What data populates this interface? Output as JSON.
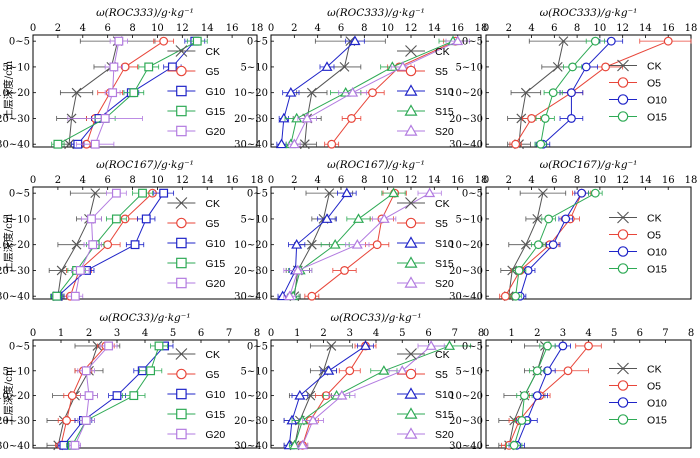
{
  "figure": {
    "row_labels": [
      "土层深度/cm",
      "土层深度/cm",
      "土层深度/cm"
    ]
  },
  "colors": {
    "CK": "#555555",
    "G5": "#e8463a",
    "G10": "#1f24c8",
    "G15": "#2eaa55",
    "G20": "#b27be0",
    "S5": "#e8463a",
    "S10": "#1f24c8",
    "S15": "#2eaa55",
    "S20": "#b27be0",
    "O5": "#e8463a",
    "O10": "#1f24c8",
    "O15": "#2eaa55"
  },
  "markers": {
    "CK": "x",
    "G5": "circle",
    "G10": "square",
    "G15": "square",
    "G20": "square",
    "S5": "circle",
    "S10": "triangle",
    "S15": "triangle",
    "S20": "triangle",
    "O5": "circle",
    "O10": "circle",
    "O15": "circle"
  },
  "chart_data": [
    {
      "type": "line",
      "title": "ω(ROC333)/g·kg⁻¹",
      "xlabel": "ω(ROC333)/g·kg⁻¹",
      "ylabel": "土层深度/cm",
      "xlim": [
        0,
        18
      ],
      "xticks": [
        0,
        2,
        4,
        6,
        8,
        10,
        12,
        14,
        16,
        18
      ],
      "categories": [
        "0~5",
        "5~10",
        "10~20",
        "20~30",
        "30~40"
      ],
      "legend_position": "right",
      "series": [
        {
          "name": "CK",
          "values": [
            6.8,
            6.3,
            3.5,
            3.1,
            2.9
          ],
          "errors": [
            3.0,
            1.4,
            1.3,
            1.2,
            1.0
          ]
        },
        {
          "name": "G5",
          "values": [
            10.5,
            7.4,
            6.2,
            5.0,
            4.3
          ],
          "errors": [
            0.8,
            1.0,
            1.0,
            0.7,
            0.5
          ]
        },
        {
          "name": "G10",
          "values": [
            13.0,
            11.2,
            7.9,
            5.3,
            3.6
          ],
          "errors": [
            0.8,
            0.7,
            0.6,
            0.6,
            0.5
          ]
        },
        {
          "name": "G15",
          "values": [
            13.2,
            9.3,
            8.1,
            5.8,
            2.0
          ],
          "errors": [
            0.8,
            0.8,
            0.8,
            0.8,
            0.5
          ]
        },
        {
          "name": "G20",
          "values": [
            6.9,
            6.5,
            6.4,
            5.8,
            5.0
          ],
          "errors": [
            0.7,
            0.7,
            0.6,
            3.0,
            1.5
          ]
        }
      ]
    },
    {
      "type": "line",
      "title": "ω(ROC333)/g·kg⁻¹",
      "xlabel": "ω(ROC333)/g·kg⁻¹",
      "ylabel": "",
      "xlim": [
        0,
        18
      ],
      "xticks": [
        0,
        2,
        4,
        6,
        8,
        10,
        12,
        14,
        16,
        18
      ],
      "categories": [
        "0~5",
        "5~10",
        "10~20",
        "20~30",
        "30~40"
      ],
      "legend_position": "right",
      "series": [
        {
          "name": "CK",
          "values": [
            6.8,
            6.3,
            3.5,
            3.1,
            2.9
          ],
          "errors": [
            3.0,
            1.4,
            1.3,
            1.2,
            1.0
          ]
        },
        {
          "name": "S5",
          "values": [
            15.8,
            11.0,
            8.7,
            6.9,
            5.2
          ],
          "errors": [
            1.0,
            1.0,
            1.0,
            0.8,
            0.6
          ]
        },
        {
          "name": "S10",
          "values": [
            7.2,
            4.8,
            1.7,
            1.1,
            0.9
          ],
          "errors": [
            0.8,
            0.6,
            0.7,
            0.4,
            0.4
          ]
        },
        {
          "name": "S15",
          "values": [
            15.6,
            10.4,
            6.4,
            2.2,
            1.7
          ],
          "errors": [
            1.2,
            1.0,
            1.3,
            1.0,
            0.4
          ]
        },
        {
          "name": "S20",
          "values": [
            16.0,
            11.3,
            7.0,
            3.1,
            2.0
          ],
          "errors": [
            1.0,
            1.0,
            1.2,
            0.8,
            0.5
          ]
        }
      ]
    },
    {
      "type": "line",
      "title": "ω(ROC333)/g·kg⁻¹",
      "xlabel": "ω(ROC333)/g·kg⁻¹",
      "ylabel": "",
      "xlim": [
        0,
        18
      ],
      "xticks": [
        0,
        2,
        4,
        6,
        8,
        10,
        12,
        14,
        16,
        18
      ],
      "categories": [
        "0~5",
        "5~10",
        "10~20",
        "20~30",
        "30~40"
      ],
      "legend_position": "right",
      "series": [
        {
          "name": "CK",
          "values": [
            6.8,
            6.3,
            3.5,
            3.1,
            2.9
          ],
          "errors": [
            3.0,
            1.4,
            1.3,
            1.2,
            1.0
          ]
        },
        {
          "name": "O5",
          "values": [
            16.0,
            10.5,
            7.5,
            4.0,
            2.6
          ],
          "errors": [
            2.5,
            1.5,
            1.0,
            0.8,
            0.5
          ]
        },
        {
          "name": "O10",
          "values": [
            11.0,
            8.8,
            7.5,
            7.5,
            5.0
          ],
          "errors": [
            1.0,
            1.0,
            1.0,
            1.0,
            0.6
          ]
        },
        {
          "name": "O15",
          "values": [
            9.6,
            7.6,
            5.9,
            5.2,
            4.8
          ],
          "errors": [
            0.8,
            0.8,
            0.8,
            0.8,
            0.5
          ]
        }
      ]
    },
    {
      "type": "line",
      "title": "ω(ROC167)/g·kg⁻¹",
      "xlabel": "ω(ROC167)/g·kg⁻¹",
      "ylabel": "土层深度/cm",
      "xlim": [
        0,
        18
      ],
      "xticks": [
        0,
        2,
        4,
        6,
        8,
        10,
        12,
        14,
        16,
        18
      ],
      "categories": [
        "0~5",
        "5~10",
        "10~20",
        "20~30",
        "30~40"
      ],
      "legend_position": "right",
      "series": [
        {
          "name": "CK",
          "values": [
            5.0,
            4.5,
            3.5,
            2.3,
            2.0
          ],
          "errors": [
            2.0,
            1.0,
            1.5,
            1.0,
            0.5
          ]
        },
        {
          "name": "G5",
          "values": [
            9.6,
            7.4,
            6.0,
            3.7,
            3.0
          ],
          "errors": [
            1.0,
            1.0,
            1.0,
            1.0,
            0.5
          ]
        },
        {
          "name": "G10",
          "values": [
            10.5,
            9.1,
            8.2,
            4.3,
            2.0
          ],
          "errors": [
            0.8,
            0.7,
            0.7,
            0.6,
            0.5
          ]
        },
        {
          "name": "G15",
          "values": [
            8.8,
            6.7,
            5.0,
            3.5,
            1.9
          ],
          "errors": [
            0.8,
            0.8,
            0.7,
            0.7,
            0.5
          ]
        },
        {
          "name": "G20",
          "values": [
            6.7,
            4.7,
            4.8,
            3.8,
            3.4
          ],
          "errors": [
            0.8,
            0.8,
            0.7,
            0.7,
            0.6
          ]
        }
      ]
    },
    {
      "type": "line",
      "title": "ω(ROC167)/g·kg⁻¹",
      "xlabel": "ω(ROC167)/g·kg⁻¹",
      "ylabel": "",
      "xlim": [
        0,
        18
      ],
      "xticks": [
        0,
        2,
        4,
        6,
        8,
        10,
        12,
        14,
        16,
        18
      ],
      "categories": [
        "0~5",
        "5~10",
        "10~20",
        "20~30",
        "30~40"
      ],
      "legend_position": "right",
      "series": [
        {
          "name": "CK",
          "values": [
            5.0,
            4.5,
            3.5,
            2.3,
            2.0
          ],
          "errors": [
            2.0,
            1.0,
            1.5,
            1.0,
            0.5
          ]
        },
        {
          "name": "S5",
          "values": [
            10.6,
            9.5,
            9.1,
            6.3,
            3.5
          ],
          "errors": [
            1.0,
            1.0,
            1.0,
            1.0,
            0.6
          ]
        },
        {
          "name": "S10",
          "values": [
            6.5,
            4.8,
            2.2,
            2.1,
            1.0
          ],
          "errors": [
            0.8,
            0.8,
            0.7,
            0.5,
            0.4
          ]
        },
        {
          "name": "S15",
          "values": [
            10.5,
            7.5,
            5.5,
            2.5,
            1.9
          ],
          "errors": [
            1.0,
            1.0,
            1.2,
            1.0,
            0.5
          ]
        },
        {
          "name": "S20",
          "values": [
            13.6,
            9.7,
            7.4,
            2.3,
            1.6
          ],
          "errors": [
            1.0,
            1.0,
            1.0,
            1.2,
            0.5
          ]
        }
      ]
    },
    {
      "type": "line",
      "title": "ω(ROC167)/g·kg⁻¹",
      "xlabel": "ω(ROC167)/g·kg⁻¹",
      "ylabel": "",
      "xlim": [
        0,
        18
      ],
      "xticks": [
        0,
        2,
        4,
        6,
        8,
        10,
        12,
        14,
        16,
        18
      ],
      "categories": [
        "0~5",
        "5~10",
        "10~20",
        "20~30",
        "30~40"
      ],
      "legend_position": "right",
      "series": [
        {
          "name": "CK",
          "values": [
            5.0,
            4.5,
            3.5,
            2.3,
            2.0
          ],
          "errors": [
            2.0,
            1.0,
            1.5,
            1.0,
            0.5
          ]
        },
        {
          "name": "O5",
          "values": [
            8.4,
            7.4,
            5.6,
            3.0,
            1.7
          ],
          "errors": [
            0.8,
            0.8,
            0.8,
            0.8,
            0.5
          ]
        },
        {
          "name": "O10",
          "values": [
            8.4,
            7.0,
            5.9,
            3.7,
            3.0
          ],
          "errors": [
            0.6,
            0.6,
            0.6,
            0.6,
            0.5
          ]
        },
        {
          "name": "O15",
          "values": [
            9.6,
            5.5,
            4.6,
            2.9,
            2.6
          ],
          "errors": [
            0.6,
            0.6,
            0.6,
            0.6,
            0.5
          ]
        }
      ]
    },
    {
      "type": "line",
      "title": "ω(ROC33)/g·kg⁻¹",
      "xlabel": "ω(ROC33)/g·kg⁻¹",
      "ylabel": "土层深度/cm",
      "xlim": [
        0,
        8
      ],
      "xticks": [
        0,
        1,
        2,
        3,
        4,
        5,
        6,
        7,
        8
      ],
      "categories": [
        "0~5",
        "5~10",
        "10~20",
        "20~30",
        "30~40"
      ],
      "legend_position": "right",
      "series": [
        {
          "name": "CK",
          "values": [
            2.3,
            2.0,
            1.5,
            1.1,
            0.9
          ],
          "errors": [
            0.8,
            0.5,
            0.8,
            0.6,
            0.4
          ]
        },
        {
          "name": "G5",
          "values": [
            2.6,
            1.8,
            1.4,
            1.2,
            1.0
          ],
          "errors": [
            0.3,
            0.3,
            0.3,
            0.3,
            0.2
          ]
        },
        {
          "name": "G10",
          "values": [
            4.7,
            3.9,
            3.0,
            1.8,
            1.1
          ],
          "errors": [
            0.3,
            0.3,
            0.3,
            0.3,
            0.2
          ]
        },
        {
          "name": "G15",
          "values": [
            4.5,
            4.2,
            3.6,
            1.9,
            1.4
          ],
          "errors": [
            0.3,
            0.4,
            0.4,
            0.3,
            0.2
          ]
        },
        {
          "name": "G20",
          "values": [
            2.7,
            1.9,
            2.0,
            1.9,
            1.5
          ],
          "errors": [
            0.3,
            0.3,
            0.3,
            0.3,
            0.2
          ]
        }
      ]
    },
    {
      "type": "line",
      "title": "ω(ROC33)/g·kg⁻¹",
      "xlabel": "ω(ROC33)/g·kg⁻¹",
      "ylabel": "",
      "xlim": [
        0,
        8
      ],
      "xticks": [
        0,
        1,
        2,
        3,
        4,
        5,
        6,
        7,
        8
      ],
      "categories": [
        "0~5",
        "5~10",
        "10~20",
        "20~30",
        "30~40"
      ],
      "legend_position": "right",
      "series": [
        {
          "name": "CK",
          "values": [
            2.3,
            2.0,
            1.5,
            1.1,
            0.9
          ],
          "errors": [
            0.8,
            0.5,
            0.8,
            0.6,
            0.4
          ]
        },
        {
          "name": "S5",
          "values": [
            3.6,
            3.0,
            2.1,
            1.5,
            1.2
          ],
          "errors": [
            0.4,
            0.4,
            0.4,
            0.3,
            0.2
          ]
        },
        {
          "name": "S10",
          "values": [
            3.6,
            2.2,
            1.1,
            0.8,
            0.7
          ],
          "errors": [
            0.3,
            0.3,
            0.3,
            0.3,
            0.2
          ]
        },
        {
          "name": "S15",
          "values": [
            6.8,
            4.3,
            2.5,
            1.2,
            0.9
          ],
          "errors": [
            0.8,
            0.5,
            0.5,
            0.4,
            0.2
          ]
        },
        {
          "name": "S20",
          "values": [
            6.1,
            5.0,
            2.7,
            1.6,
            1.2
          ],
          "errors": [
            0.5,
            0.5,
            0.5,
            0.4,
            0.2
          ]
        }
      ]
    },
    {
      "type": "line",
      "title": "",
      "xlabel": "",
      "ylabel": "",
      "xlim": [
        0,
        8
      ],
      "xticks": [
        0,
        1,
        2,
        3,
        4,
        5,
        6,
        7,
        8
      ],
      "categories": [
        "0~5",
        "5~10",
        "10~20",
        "20~30",
        "30~40"
      ],
      "legend_position": "right",
      "series": [
        {
          "name": "CK",
          "values": [
            2.3,
            2.0,
            1.5,
            1.1,
            0.9
          ],
          "errors": [
            0.8,
            0.5,
            0.8,
            0.6,
            0.4
          ]
        },
        {
          "name": "O5",
          "values": [
            4.0,
            3.2,
            2.1,
            1.3,
            0.9
          ],
          "errors": [
            0.5,
            0.8,
            0.4,
            0.4,
            0.3
          ]
        },
        {
          "name": "O10",
          "values": [
            3.0,
            2.4,
            2.0,
            1.6,
            1.2
          ],
          "errors": [
            0.3,
            0.3,
            0.4,
            0.4,
            0.3
          ]
        },
        {
          "name": "O15",
          "values": [
            2.4,
            2.0,
            1.5,
            1.4,
            1.1
          ],
          "errors": [
            0.3,
            0.3,
            0.3,
            0.3,
            0.3
          ]
        }
      ]
    }
  ]
}
